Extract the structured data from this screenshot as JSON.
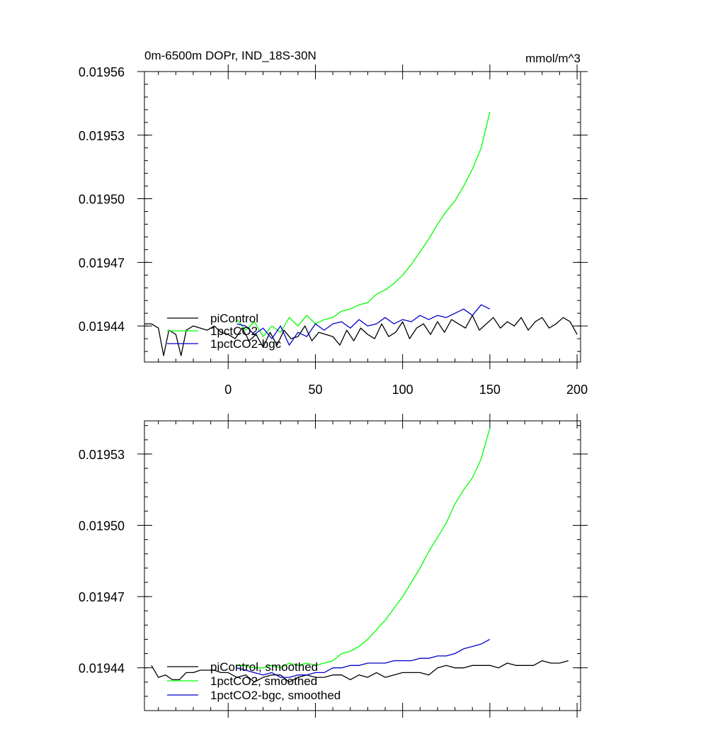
{
  "chart_data": [
    {
      "type": "line",
      "title": "0m-6500m DOPr, IND_18S-30N",
      "units": "mmol/m^3",
      "xlim": [
        -48,
        202
      ],
      "ylim": [
        0.019423,
        0.01956
      ],
      "yticks": [
        0.01944,
        0.01947,
        0.0195,
        0.01953,
        0.01956
      ],
      "ytick_labels": [
        "0.01944",
        "0.01947",
        "0.01950",
        "0.01953",
        "0.01956"
      ],
      "xticks": [
        0,
        50,
        100,
        150,
        200
      ],
      "xtick_labels": [
        "0",
        "50",
        "100",
        "150",
        "200"
      ],
      "legend_position": "lower-left",
      "series": [
        {
          "name": "piControl",
          "color": "#000000",
          "x": [
            -48,
            -44,
            -40,
            -37,
            -34,
            -30,
            -27,
            -24,
            -20,
            -16,
            -12,
            -8,
            -4,
            0,
            4,
            8,
            12,
            16,
            20,
            24,
            28,
            32,
            36,
            40,
            44,
            48,
            52,
            56,
            60,
            64,
            68,
            72,
            76,
            80,
            84,
            88,
            92,
            96,
            100,
            104,
            108,
            112,
            116,
            120,
            124,
            128,
            132,
            136,
            140,
            144,
            148,
            152,
            156,
            160,
            164,
            168,
            172,
            176,
            180,
            184,
            188,
            192,
            196,
            200
          ],
          "values": [
            0.019441,
            0.019441,
            0.019439,
            0.019426,
            0.019438,
            0.019436,
            0.019426,
            0.019438,
            0.01944,
            0.019439,
            0.019438,
            0.01944,
            0.019437,
            0.019436,
            0.019434,
            0.019439,
            0.019433,
            0.019436,
            0.01943,
            0.019437,
            0.019431,
            0.019438,
            0.019434,
            0.019435,
            0.01944,
            0.019433,
            0.019437,
            0.019436,
            0.019435,
            0.019431,
            0.019438,
            0.019433,
            0.019439,
            0.019436,
            0.019434,
            0.019441,
            0.019435,
            0.019437,
            0.019442,
            0.019434,
            0.019439,
            0.019441,
            0.019436,
            0.019442,
            0.019437,
            0.019443,
            0.019441,
            0.019439,
            0.019445,
            0.019438,
            0.019441,
            0.019444,
            0.019439,
            0.019442,
            0.01944,
            0.019444,
            0.019438,
            0.019442,
            0.019444,
            0.019439,
            0.019441,
            0.019444,
            0.019442,
            0.019436
          ]
        },
        {
          "name": "1pctCO2",
          "color": "#00ff00",
          "x": [
            5,
            10,
            15,
            20,
            25,
            30,
            35,
            40,
            45,
            50,
            55,
            60,
            65,
            70,
            75,
            80,
            85,
            90,
            95,
            100,
            105,
            110,
            115,
            120,
            125,
            130,
            135,
            140,
            145,
            150
          ],
          "values": [
            0.019443,
            0.019438,
            0.019442,
            0.019435,
            0.01944,
            0.019437,
            0.019444,
            0.01944,
            0.019445,
            0.019441,
            0.019443,
            0.019444,
            0.019447,
            0.019448,
            0.01945,
            0.019451,
            0.019455,
            0.019457,
            0.01946,
            0.019464,
            0.019469,
            0.019475,
            0.019481,
            0.019488,
            0.019494,
            0.019499,
            0.019506,
            0.019514,
            0.019524,
            0.019541
          ]
        },
        {
          "name": "1pctCO2-bgc",
          "color": "#0000cc",
          "x": [
            5,
            10,
            15,
            20,
            25,
            30,
            35,
            40,
            45,
            50,
            55,
            60,
            65,
            70,
            75,
            80,
            85,
            90,
            95,
            100,
            105,
            110,
            115,
            120,
            125,
            130,
            135,
            140,
            145,
            150
          ],
          "values": [
            0.019441,
            0.01944,
            0.019436,
            0.019439,
            0.019434,
            0.01944,
            0.019431,
            0.019437,
            0.019435,
            0.019441,
            0.019438,
            0.019441,
            0.019442,
            0.019439,
            0.019443,
            0.01944,
            0.019441,
            0.019444,
            0.019441,
            0.019443,
            0.019442,
            0.019445,
            0.019443,
            0.019445,
            0.019444,
            0.019446,
            0.019448,
            0.019445,
            0.01945,
            0.019448
          ]
        }
      ]
    },
    {
      "type": "line",
      "title": "",
      "units": "",
      "xlim": [
        -48,
        202
      ],
      "ylim": [
        0.019422,
        0.019544
      ],
      "yticks": [
        0.01944,
        0.01947,
        0.0195,
        0.01953
      ],
      "ytick_labels": [
        "0.01944",
        "0.01947",
        "0.01950",
        "0.01953"
      ],
      "xticks": [
        0,
        50,
        100,
        150,
        200
      ],
      "xtick_labels": [
        "",
        "",
        "",
        "",
        ""
      ],
      "legend_position": "lower-left",
      "series": [
        {
          "name": "piControl, smoothed",
          "color": "#000000",
          "x": [
            -44,
            -40,
            -36,
            -32,
            -28,
            -24,
            -20,
            -16,
            -12,
            -8,
            -4,
            0,
            5,
            10,
            15,
            20,
            25,
            30,
            35,
            40,
            45,
            50,
            55,
            60,
            65,
            70,
            75,
            80,
            85,
            90,
            95,
            100,
            105,
            110,
            115,
            120,
            125,
            130,
            135,
            140,
            145,
            150,
            155,
            160,
            165,
            170,
            175,
            180,
            185,
            190,
            195
          ],
          "values": [
            0.019441,
            0.019436,
            0.019437,
            0.019435,
            0.019435,
            0.019438,
            0.019438,
            0.019439,
            0.019439,
            0.019439,
            0.019438,
            0.019438,
            0.019436,
            0.019437,
            0.019434,
            0.019436,
            0.019437,
            0.019437,
            0.019434,
            0.019436,
            0.019437,
            0.019436,
            0.019436,
            0.019437,
            0.019437,
            0.019435,
            0.019437,
            0.019436,
            0.019438,
            0.019436,
            0.019437,
            0.019438,
            0.019438,
            0.019438,
            0.019437,
            0.01944,
            0.019441,
            0.01944,
            0.01944,
            0.019441,
            0.019441,
            0.019441,
            0.01944,
            0.019442,
            0.019441,
            0.019441,
            0.019441,
            0.019443,
            0.019442,
            0.019442,
            0.019443
          ]
        },
        {
          "name": "1pctCO2, smoothed",
          "color": "#00ff00",
          "x": [
            5,
            10,
            15,
            20,
            25,
            30,
            35,
            40,
            45,
            50,
            55,
            60,
            65,
            70,
            75,
            80,
            85,
            90,
            95,
            100,
            105,
            110,
            115,
            120,
            125,
            130,
            135,
            140,
            145,
            150
          ],
          "values": [
            0.019441,
            0.019441,
            0.01944,
            0.01944,
            0.019441,
            0.01944,
            0.019442,
            0.019441,
            0.019442,
            0.019441,
            0.019442,
            0.019443,
            0.019446,
            0.019447,
            0.019449,
            0.019452,
            0.019456,
            0.01946,
            0.019465,
            0.01947,
            0.019476,
            0.019482,
            0.019489,
            0.019495,
            0.019501,
            0.019509,
            0.019515,
            0.01952,
            0.019528,
            0.019541
          ]
        },
        {
          "name": "1pctCO2-bgc, smoothed",
          "color": "#0000cc",
          "x": [
            5,
            10,
            15,
            20,
            25,
            30,
            35,
            40,
            45,
            50,
            55,
            60,
            65,
            70,
            75,
            80,
            85,
            90,
            95,
            100,
            105,
            110,
            115,
            120,
            125,
            130,
            135,
            140,
            145,
            150
          ],
          "values": [
            0.01944,
            0.019439,
            0.019438,
            0.019437,
            0.019438,
            0.019436,
            0.019436,
            0.019437,
            0.019437,
            0.019438,
            0.019438,
            0.01944,
            0.01944,
            0.019441,
            0.019441,
            0.019442,
            0.019442,
            0.019442,
            0.019443,
            0.019443,
            0.019443,
            0.019444,
            0.019444,
            0.019445,
            0.019445,
            0.019446,
            0.019448,
            0.019449,
            0.01945,
            0.019452
          ]
        }
      ]
    }
  ]
}
